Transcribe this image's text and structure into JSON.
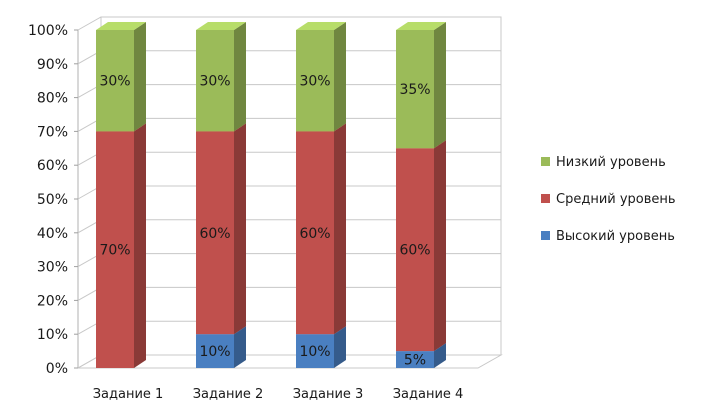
{
  "chart_data": {
    "type": "bar",
    "stacked": true,
    "percent_stacked": true,
    "three_d": true,
    "title": "",
    "xlabel": "",
    "ylabel": "",
    "ylim": [
      0,
      100
    ],
    "y_ticks": [
      "0%",
      "10%",
      "20%",
      "30%",
      "40%",
      "50%",
      "60%",
      "70%",
      "80%",
      "90%",
      "100%"
    ],
    "categories": [
      "Задание 1",
      "Задание 2",
      "Задание 3",
      "Задание 4"
    ],
    "series": [
      {
        "name": "Высокий уровень",
        "values": [
          0,
          10,
          10,
          5
        ],
        "labels": [
          "",
          "10%",
          "10%",
          "5%"
        ],
        "color": "#4a7fc1"
      },
      {
        "name": "Средний уровень",
        "values": [
          70,
          60,
          60,
          60
        ],
        "labels": [
          "70%",
          "60%",
          "60%",
          "60%"
        ],
        "color": "#c0504d"
      },
      {
        "name": "Низкий уровень",
        "values": [
          30,
          30,
          30,
          35
        ],
        "labels": [
          "30%",
          "30%",
          "30%",
          "35%"
        ],
        "color": "#9bbb59"
      }
    ],
    "legend_order": [
      "Низкий уровень",
      "Средний уровень",
      "Высокий уровень"
    ],
    "legend_position": "right",
    "grid": true
  }
}
